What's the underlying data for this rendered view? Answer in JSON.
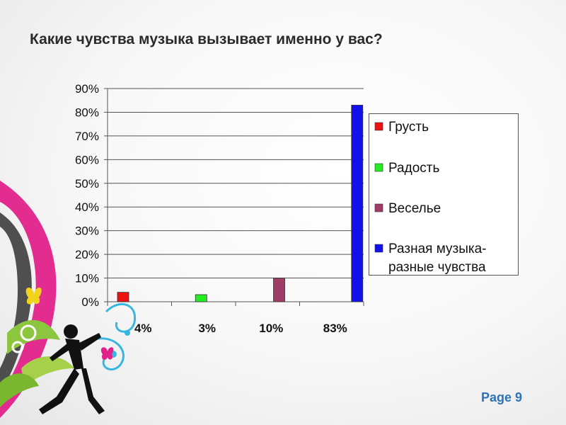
{
  "page": {
    "title": "Какие чувства музыка вызывает именно у вас?",
    "page_label": "Page 9"
  },
  "chart_data": {
    "type": "bar",
    "title": "",
    "xlabel": "",
    "ylabel": "",
    "categories": [
      "4%",
      "3%",
      "10%",
      "83%"
    ],
    "values": [
      4,
      3,
      10,
      83
    ],
    "ylim": [
      0,
      90
    ],
    "yticks": [
      0,
      10,
      20,
      30,
      40,
      50,
      60,
      70,
      80,
      90
    ],
    "ytick_labels": [
      "0%",
      "10%",
      "20%",
      "30%",
      "40%",
      "50%",
      "60%",
      "70%",
      "80%",
      "90%"
    ],
    "grid": true,
    "legend_position": "right",
    "series": [
      {
        "name": "Грусть",
        "value": 4,
        "color": "#ee1111",
        "label_lines": [
          "Грусть"
        ]
      },
      {
        "name": "Радость",
        "value": 3,
        "color": "#22ee22",
        "label_lines": [
          "Радость"
        ]
      },
      {
        "name": "Веселье",
        "value": 10,
        "color": "#a03c66",
        "label_lines": [
          "Веселье"
        ]
      },
      {
        "name": "Разная музыка-разные чувства",
        "value": 83,
        "color": "#1111ee",
        "label_lines": [
          "Разная музыка-",
          "разные чувства"
        ]
      }
    ]
  }
}
